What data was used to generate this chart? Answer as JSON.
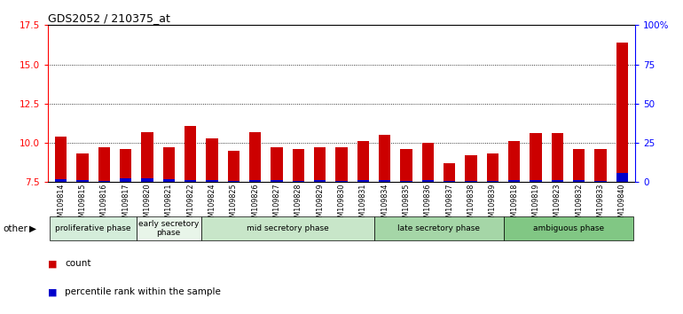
{
  "title": "GDS2052 / 210375_at",
  "samples": [
    "GSM109814",
    "GSM109815",
    "GSM109816",
    "GSM109817",
    "GSM109820",
    "GSM109821",
    "GSM109822",
    "GSM109824",
    "GSM109825",
    "GSM109826",
    "GSM109827",
    "GSM109828",
    "GSM109829",
    "GSM109830",
    "GSM109831",
    "GSM109834",
    "GSM109835",
    "GSM109836",
    "GSM109837",
    "GSM109838",
    "GSM109839",
    "GSM109818",
    "GSM109819",
    "GSM109823",
    "GSM109832",
    "GSM109833",
    "GSM109840"
  ],
  "count_values": [
    10.4,
    9.3,
    9.7,
    9.6,
    10.7,
    9.7,
    11.1,
    10.3,
    9.5,
    10.7,
    9.7,
    9.6,
    9.7,
    9.7,
    10.1,
    10.5,
    9.6,
    10.0,
    8.7,
    9.2,
    9.3,
    10.1,
    10.6,
    10.6,
    9.6,
    9.6,
    16.4
  ],
  "percentile_values": [
    2.0,
    1.5,
    1.0,
    2.5,
    2.5,
    2.0,
    1.5,
    1.5,
    1.0,
    1.5,
    1.5,
    1.0,
    1.5,
    1.0,
    1.5,
    1.5,
    1.0,
    1.5,
    1.0,
    1.0,
    1.0,
    1.5,
    1.5,
    1.5,
    1.5,
    1.0,
    6.0
  ],
  "ylim_left": [
    7.5,
    17.5
  ],
  "ylim_right": [
    0,
    100
  ],
  "yticks_left": [
    7.5,
    10.0,
    12.5,
    15.0,
    17.5
  ],
  "yticks_right": [
    0,
    25,
    50,
    75,
    100
  ],
  "groups": [
    {
      "label": "proliferative phase",
      "start": 0,
      "end": 4,
      "color": "#d4edda"
    },
    {
      "label": "early secretory\nphase",
      "start": 4,
      "end": 7,
      "color": "#e8f5e9"
    },
    {
      "label": "mid secretory phase",
      "start": 7,
      "end": 15,
      "color": "#c8e6c9"
    },
    {
      "label": "late secretory phase",
      "start": 15,
      "end": 21,
      "color": "#a5d6a7"
    },
    {
      "label": "ambiguous phase",
      "start": 21,
      "end": 27,
      "color": "#81c784"
    }
  ],
  "bar_color_red": "#cc0000",
  "bar_color_blue": "#0000cc",
  "baseline": 7.5,
  "bar_width": 0.55,
  "background_color": "#ffffff",
  "other_label": "other"
}
